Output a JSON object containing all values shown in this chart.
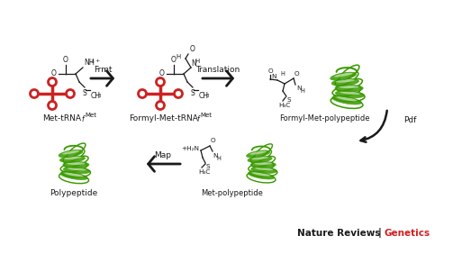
{
  "background_color": "#ffffff",
  "fig_width": 5.03,
  "fig_height": 2.82,
  "dpi": 100,
  "tRNA_color": "#cc2222",
  "molecule_color": "#3a9a00",
  "text_color": "#1a1a1a",
  "arrow_color": "#1a1a1a",
  "journal_black": "#1a1a1a",
  "journal_red": "#cc2222",
  "label1": "Met-tRNA",
  "label1_sub": "f",
  "label1_sup": "Met",
  "label2": "Formyl-Met-tRNA",
  "label2_sub": "f",
  "label2_sup": "Met",
  "label3": "Formyl-Met-polypeptide",
  "label4": "Met-polypeptide",
  "label5": "Polypeptide",
  "step1": "Frmt",
  "step2": "Translation",
  "step3": "Pdf",
  "step4": "Map"
}
